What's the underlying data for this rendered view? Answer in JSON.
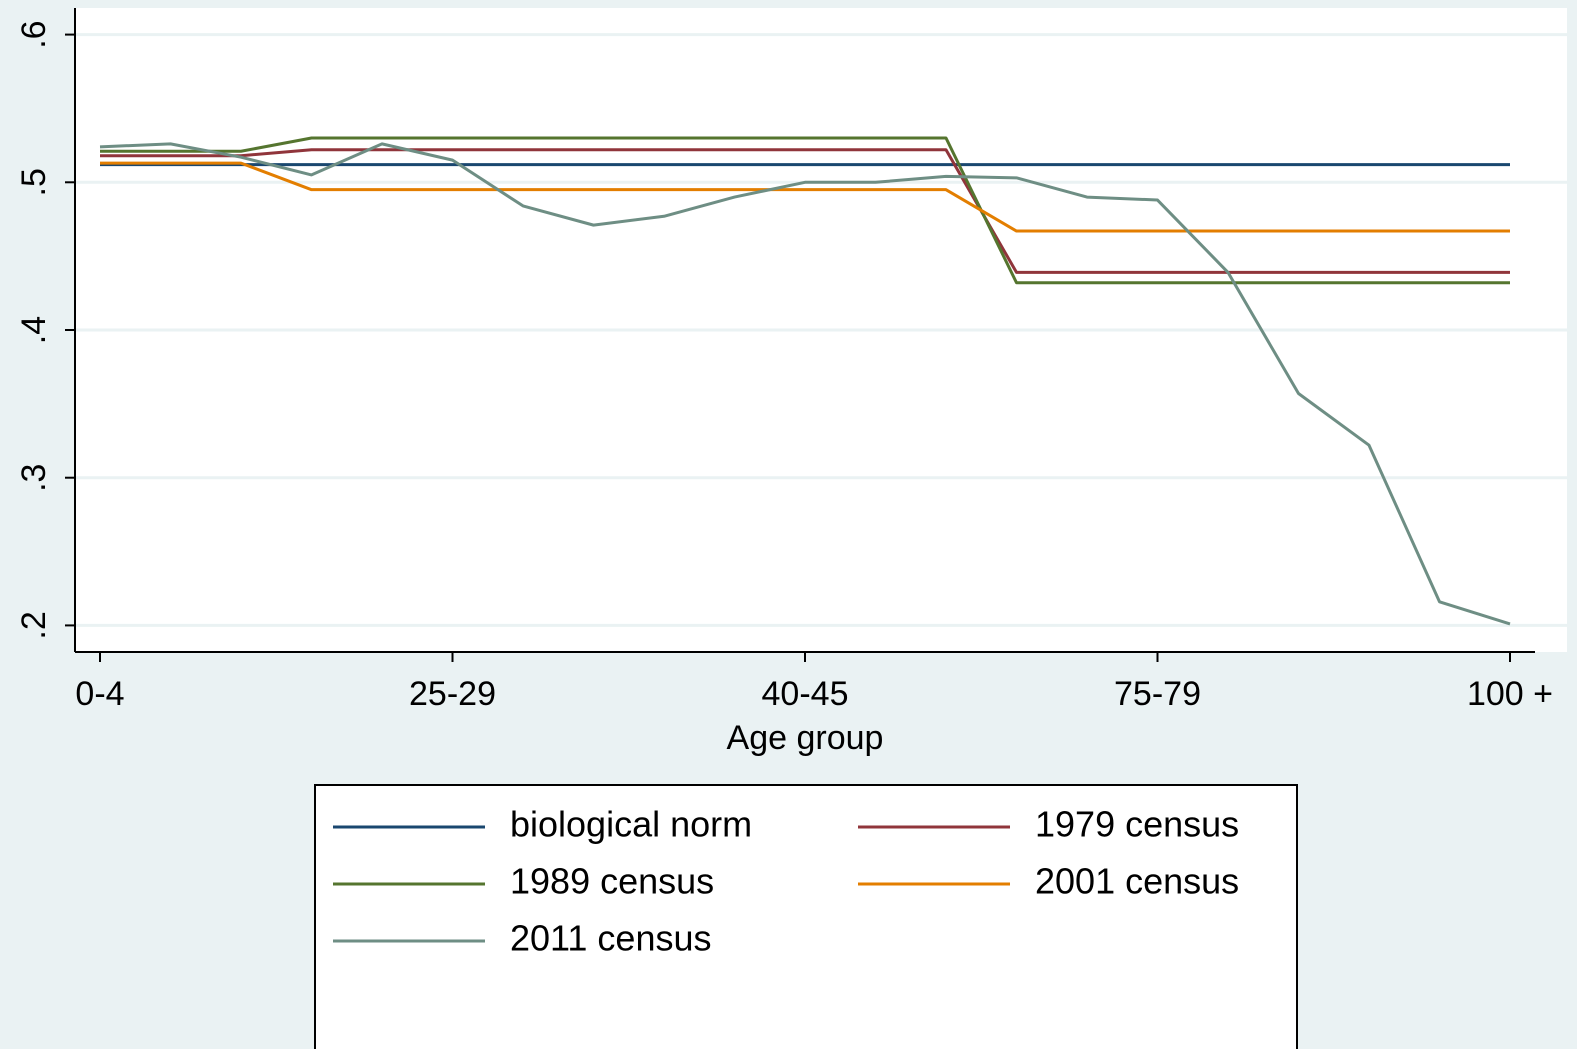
{
  "chart_data": {
    "type": "line",
    "x_label": "Age group",
    "categories": [
      "0-4",
      null,
      null,
      null,
      null,
      "25-29",
      null,
      null,
      null,
      null,
      "40-45",
      null,
      null,
      null,
      null,
      "75-79",
      null,
      null,
      null,
      null,
      "100 +"
    ],
    "ylim": [
      0.182,
      0.618
    ],
    "yticks": [
      {
        "value": 0.2,
        "label": ".2"
      },
      {
        "value": 0.3,
        "label": ".3"
      },
      {
        "value": 0.4,
        "label": ".4"
      },
      {
        "value": 0.5,
        "label": ".5"
      },
      {
        "value": 0.6,
        "label": ".6"
      }
    ],
    "grid": true,
    "series": [
      {
        "name": "biological norm",
        "color": "#1a476f",
        "values": [
          0.512,
          0.512,
          0.512,
          0.512,
          0.512,
          0.512,
          0.512,
          0.512,
          0.512,
          0.512,
          0.512,
          0.512,
          0.512,
          0.512,
          0.512,
          0.512,
          0.512,
          0.512,
          0.512,
          0.512,
          0.512
        ]
      },
      {
        "name": "1979 census",
        "color": "#90353b",
        "values": [
          0.518,
          0.518,
          0.518,
          0.522,
          0.522,
          0.522,
          0.522,
          0.522,
          0.522,
          0.522,
          0.522,
          0.522,
          0.522,
          0.439,
          0.439,
          0.439,
          0.439,
          0.439,
          0.439,
          0.439,
          0.439
        ]
      },
      {
        "name": "1989 census",
        "color": "#55752f",
        "values": [
          0.521,
          0.521,
          0.521,
          0.53,
          0.53,
          0.53,
          0.53,
          0.53,
          0.53,
          0.53,
          0.53,
          0.53,
          0.53,
          0.432,
          0.432,
          0.432,
          0.432,
          0.432,
          0.432,
          0.432,
          0.432
        ]
      },
      {
        "name": "2001 census",
        "color": "#e37e00",
        "values": [
          0.513,
          0.513,
          0.513,
          0.495,
          0.495,
          0.495,
          0.495,
          0.495,
          0.495,
          0.495,
          0.495,
          0.495,
          0.495,
          0.467,
          0.467,
          0.467,
          0.467,
          0.467,
          0.467,
          0.467,
          0.467
        ]
      },
      {
        "name": "2011 census",
        "color": "#6e8e84",
        "values": [
          0.524,
          0.526,
          0.517,
          0.505,
          0.526,
          0.515,
          0.484,
          0.471,
          0.477,
          0.49,
          0.5,
          0.5,
          0.504,
          0.503,
          0.49,
          0.488,
          0.439,
          0.357,
          0.322,
          0.216,
          0.201
        ]
      }
    ]
  }
}
